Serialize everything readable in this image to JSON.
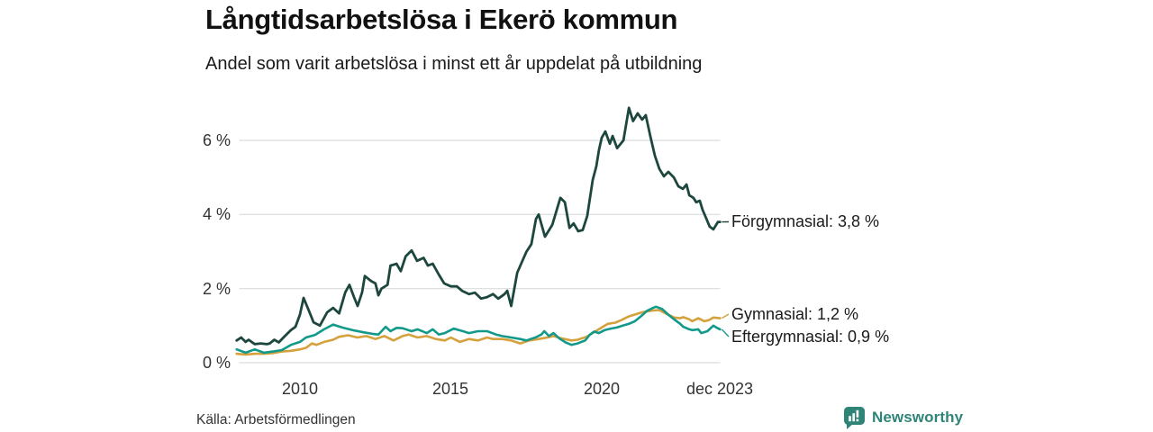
{
  "header": {
    "title": "Långtidsarbetslösa i Ekerö kommun",
    "subtitle": "Andel som varit arbetslösa i minst ett år uppdelat på utbildning"
  },
  "footer": {
    "source": "Källa: Arbetsförmedlingen",
    "brand": "Newsworthy"
  },
  "chart_data": {
    "type": "line",
    "title": "Långtidsarbetslösa i Ekerö kommun",
    "subtitle": "Andel som varit arbetslösa i minst ett år uppdelat på utbildning",
    "xlabel": "",
    "ylabel": "",
    "x_unit": "year (decimal)",
    "y_unit": "percent",
    "xlim": [
      2007.9,
      2023.95
    ],
    "ylim": [
      0,
      7
    ],
    "grid": "horizontal",
    "legend_position": "end-of-line labels, right side",
    "background": "#ffffff",
    "gridline_color": "#dcdcdc",
    "yticks": [
      {
        "value": 0,
        "label": "0 %"
      },
      {
        "value": 2,
        "label": "2 %"
      },
      {
        "value": 4,
        "label": "4 %"
      },
      {
        "value": 6,
        "label": "6 %"
      }
    ],
    "xticks": [
      {
        "value": 2010,
        "label": "2010"
      },
      {
        "value": 2015,
        "label": "2015"
      },
      {
        "value": 2020,
        "label": "2020"
      },
      {
        "value": 2023.92,
        "label": "dec 2023"
      }
    ],
    "series": [
      {
        "name": "Förgymnasial",
        "end_label": "Förgymnasial: 3,8 %",
        "last_value": 3.8,
        "color": "#1d473e",
        "stroke_width": 2.8,
        "points": [
          [
            2007.9,
            0.6
          ],
          [
            2008.05,
            0.68
          ],
          [
            2008.2,
            0.56
          ],
          [
            2008.3,
            0.62
          ],
          [
            2008.5,
            0.5
          ],
          [
            2008.7,
            0.52
          ],
          [
            2008.9,
            0.5
          ],
          [
            2009.0,
            0.52
          ],
          [
            2009.15,
            0.62
          ],
          [
            2009.3,
            0.55
          ],
          [
            2009.5,
            0.72
          ],
          [
            2009.7,
            0.88
          ],
          [
            2009.85,
            0.97
          ],
          [
            2010.0,
            1.3
          ],
          [
            2010.12,
            1.75
          ],
          [
            2010.3,
            1.4
          ],
          [
            2010.45,
            1.09
          ],
          [
            2010.66,
            1.0
          ],
          [
            2010.9,
            1.36
          ],
          [
            2011.1,
            1.48
          ],
          [
            2011.3,
            1.33
          ],
          [
            2011.5,
            1.9
          ],
          [
            2011.64,
            2.1
          ],
          [
            2011.79,
            1.77
          ],
          [
            2011.91,
            1.53
          ],
          [
            2012.06,
            1.9
          ],
          [
            2012.15,
            2.34
          ],
          [
            2012.36,
            2.2
          ],
          [
            2012.5,
            2.14
          ],
          [
            2012.6,
            1.82
          ],
          [
            2012.7,
            2.0
          ],
          [
            2012.9,
            2.1
          ],
          [
            2013.0,
            2.62
          ],
          [
            2013.2,
            2.67
          ],
          [
            2013.34,
            2.47
          ],
          [
            2013.5,
            2.87
          ],
          [
            2013.7,
            3.03
          ],
          [
            2013.88,
            2.75
          ],
          [
            2014.1,
            2.83
          ],
          [
            2014.24,
            2.62
          ],
          [
            2014.4,
            2.67
          ],
          [
            2014.6,
            2.38
          ],
          [
            2014.78,
            2.14
          ],
          [
            2015.0,
            2.06
          ],
          [
            2015.2,
            2.06
          ],
          [
            2015.37,
            1.94
          ],
          [
            2015.6,
            1.85
          ],
          [
            2015.8,
            1.89
          ],
          [
            2016.0,
            1.73
          ],
          [
            2016.2,
            1.77
          ],
          [
            2016.4,
            1.85
          ],
          [
            2016.57,
            1.73
          ],
          [
            2016.78,
            1.85
          ],
          [
            2016.87,
            1.94
          ],
          [
            2017.0,
            1.53
          ],
          [
            2017.2,
            2.43
          ],
          [
            2017.5,
            2.99
          ],
          [
            2017.67,
            3.2
          ],
          [
            2017.82,
            3.88
          ],
          [
            2017.91,
            4.0
          ],
          [
            2018.12,
            3.4
          ],
          [
            2018.36,
            3.72
          ],
          [
            2018.63,
            4.45
          ],
          [
            2018.78,
            4.33
          ],
          [
            2018.93,
            3.64
          ],
          [
            2019.07,
            3.76
          ],
          [
            2019.22,
            3.55
          ],
          [
            2019.37,
            3.58
          ],
          [
            2019.52,
            3.96
          ],
          [
            2019.7,
            4.93
          ],
          [
            2019.82,
            5.3
          ],
          [
            2019.91,
            5.75
          ],
          [
            2020.0,
            6.07
          ],
          [
            2020.12,
            6.24
          ],
          [
            2020.27,
            5.91
          ],
          [
            2020.36,
            6.12
          ],
          [
            2020.51,
            5.79
          ],
          [
            2020.72,
            6.0
          ],
          [
            2020.9,
            6.88
          ],
          [
            2021.04,
            6.52
          ],
          [
            2021.19,
            6.73
          ],
          [
            2021.34,
            6.56
          ],
          [
            2021.46,
            6.68
          ],
          [
            2021.61,
            6.12
          ],
          [
            2021.76,
            5.59
          ],
          [
            2021.91,
            5.23
          ],
          [
            2022.06,
            5.03
          ],
          [
            2022.21,
            5.15
          ],
          [
            2022.39,
            5.0
          ],
          [
            2022.54,
            4.76
          ],
          [
            2022.69,
            4.69
          ],
          [
            2022.81,
            4.81
          ],
          [
            2022.9,
            4.52
          ],
          [
            2023.04,
            4.45
          ],
          [
            2023.13,
            4.33
          ],
          [
            2023.25,
            4.37
          ],
          [
            2023.34,
            4.13
          ],
          [
            2023.43,
            3.96
          ],
          [
            2023.58,
            3.67
          ],
          [
            2023.7,
            3.6
          ],
          [
            2023.85,
            3.8
          ],
          [
            2023.92,
            3.8
          ]
        ]
      },
      {
        "name": "Gymnasial",
        "end_label": "Gymnasial: 1,2 %",
        "last_value": 1.2,
        "color": "#d4a13d",
        "stroke_width": 2.6,
        "points": [
          [
            2007.9,
            0.24
          ],
          [
            2008.2,
            0.22
          ],
          [
            2008.5,
            0.24
          ],
          [
            2008.8,
            0.24
          ],
          [
            2009.1,
            0.26
          ],
          [
            2009.4,
            0.3
          ],
          [
            2009.7,
            0.32
          ],
          [
            2010.0,
            0.36
          ],
          [
            2010.2,
            0.4
          ],
          [
            2010.4,
            0.52
          ],
          [
            2010.55,
            0.48
          ],
          [
            2010.8,
            0.56
          ],
          [
            2011.1,
            0.62
          ],
          [
            2011.3,
            0.7
          ],
          [
            2011.6,
            0.74
          ],
          [
            2011.9,
            0.68
          ],
          [
            2012.2,
            0.72
          ],
          [
            2012.5,
            0.64
          ],
          [
            2012.8,
            0.72
          ],
          [
            2013.1,
            0.6
          ],
          [
            2013.4,
            0.72
          ],
          [
            2013.6,
            0.76
          ],
          [
            2013.9,
            0.68
          ],
          [
            2014.2,
            0.72
          ],
          [
            2014.5,
            0.64
          ],
          [
            2014.8,
            0.6
          ],
          [
            2015.0,
            0.68
          ],
          [
            2015.3,
            0.56
          ],
          [
            2015.6,
            0.64
          ],
          [
            2015.9,
            0.6
          ],
          [
            2016.2,
            0.68
          ],
          [
            2016.4,
            0.64
          ],
          [
            2016.7,
            0.64
          ],
          [
            2017.0,
            0.6
          ],
          [
            2017.3,
            0.52
          ],
          [
            2017.6,
            0.6
          ],
          [
            2017.9,
            0.64
          ],
          [
            2018.2,
            0.68
          ],
          [
            2018.4,
            0.72
          ],
          [
            2018.7,
            0.65
          ],
          [
            2019.0,
            0.6
          ],
          [
            2019.2,
            0.62
          ],
          [
            2019.5,
            0.7
          ],
          [
            2019.8,
            0.85
          ],
          [
            2020.0,
            0.95
          ],
          [
            2020.2,
            1.05
          ],
          [
            2020.45,
            1.08
          ],
          [
            2020.65,
            1.15
          ],
          [
            2020.9,
            1.25
          ],
          [
            2021.1,
            1.3
          ],
          [
            2021.3,
            1.35
          ],
          [
            2021.45,
            1.38
          ],
          [
            2021.7,
            1.41
          ],
          [
            2021.9,
            1.42
          ],
          [
            2022.15,
            1.32
          ],
          [
            2022.4,
            1.22
          ],
          [
            2022.6,
            1.2
          ],
          [
            2022.7,
            1.23
          ],
          [
            2022.9,
            1.17
          ],
          [
            2023.0,
            1.12
          ],
          [
            2023.2,
            1.2
          ],
          [
            2023.4,
            1.12
          ],
          [
            2023.55,
            1.15
          ],
          [
            2023.7,
            1.22
          ],
          [
            2023.92,
            1.2
          ]
        ]
      },
      {
        "name": "Eftergymnasial",
        "end_label": "Eftergymnasial: 0,9 %",
        "last_value": 0.9,
        "color": "#12998a",
        "stroke_width": 2.6,
        "points": [
          [
            2007.9,
            0.36
          ],
          [
            2008.2,
            0.27
          ],
          [
            2008.5,
            0.36
          ],
          [
            2008.8,
            0.27
          ],
          [
            2009.1,
            0.3
          ],
          [
            2009.4,
            0.34
          ],
          [
            2009.7,
            0.48
          ],
          [
            2010.0,
            0.56
          ],
          [
            2010.2,
            0.68
          ],
          [
            2010.5,
            0.75
          ],
          [
            2010.8,
            0.9
          ],
          [
            2011.1,
            1.03
          ],
          [
            2011.4,
            0.95
          ],
          [
            2011.8,
            0.87
          ],
          [
            2012.1,
            0.82
          ],
          [
            2012.4,
            0.78
          ],
          [
            2012.6,
            0.76
          ],
          [
            2012.84,
            0.97
          ],
          [
            2013.0,
            0.85
          ],
          [
            2013.2,
            0.94
          ],
          [
            2013.4,
            0.93
          ],
          [
            2013.7,
            0.85
          ],
          [
            2013.9,
            0.9
          ],
          [
            2014.2,
            0.8
          ],
          [
            2014.4,
            0.9
          ],
          [
            2014.6,
            0.76
          ],
          [
            2014.8,
            0.8
          ],
          [
            2015.1,
            0.92
          ],
          [
            2015.4,
            0.85
          ],
          [
            2015.6,
            0.8
          ],
          [
            2015.9,
            0.85
          ],
          [
            2016.2,
            0.85
          ],
          [
            2016.5,
            0.76
          ],
          [
            2016.7,
            0.72
          ],
          [
            2017.0,
            0.68
          ],
          [
            2017.3,
            0.64
          ],
          [
            2017.5,
            0.6
          ],
          [
            2017.8,
            0.68
          ],
          [
            2018.0,
            0.76
          ],
          [
            2018.1,
            0.85
          ],
          [
            2018.25,
            0.72
          ],
          [
            2018.4,
            0.8
          ],
          [
            2018.6,
            0.65
          ],
          [
            2018.8,
            0.55
          ],
          [
            2019.0,
            0.48
          ],
          [
            2019.2,
            0.52
          ],
          [
            2019.45,
            0.6
          ],
          [
            2019.6,
            0.75
          ],
          [
            2019.75,
            0.84
          ],
          [
            2019.9,
            0.8
          ],
          [
            2020.1,
            0.88
          ],
          [
            2020.3,
            0.92
          ],
          [
            2020.5,
            0.95
          ],
          [
            2020.7,
            1.0
          ],
          [
            2020.9,
            1.05
          ],
          [
            2021.1,
            1.12
          ],
          [
            2021.3,
            1.25
          ],
          [
            2021.5,
            1.4
          ],
          [
            2021.7,
            1.48
          ],
          [
            2021.8,
            1.51
          ],
          [
            2022.0,
            1.45
          ],
          [
            2022.2,
            1.3
          ],
          [
            2022.4,
            1.17
          ],
          [
            2022.6,
            1.05
          ],
          [
            2022.7,
            0.97
          ],
          [
            2022.9,
            0.9
          ],
          [
            2023.0,
            0.88
          ],
          [
            2023.2,
            0.9
          ],
          [
            2023.3,
            0.8
          ],
          [
            2023.5,
            0.85
          ],
          [
            2023.7,
            1.0
          ],
          [
            2023.8,
            0.95
          ],
          [
            2023.92,
            0.9
          ]
        ]
      }
    ]
  }
}
